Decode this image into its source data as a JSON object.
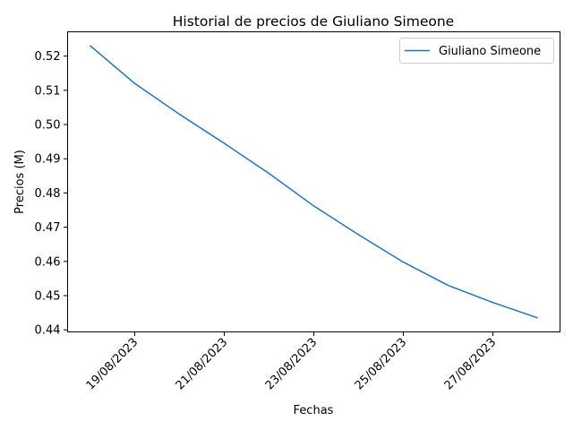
{
  "chart_data": {
    "type": "line",
    "title": "Historial de precios de Giuliano Simeone",
    "xlabel": "Fechas",
    "ylabel": "Precios (M)",
    "x": [
      "18/08/2023",
      "19/08/2023",
      "20/08/2023",
      "21/08/2023",
      "22/08/2023",
      "23/08/2023",
      "24/08/2023",
      "25/08/2023",
      "26/08/2023",
      "27/08/2023",
      "28/08/2023"
    ],
    "x_ticks": [
      "19/08/2023",
      "21/08/2023",
      "23/08/2023",
      "25/08/2023",
      "27/08/2023"
    ],
    "y_ticks": [
      "0.44",
      "0.45",
      "0.46",
      "0.47",
      "0.48",
      "0.49",
      "0.50",
      "0.51",
      "0.52"
    ],
    "ylim": [
      0.4394,
      0.5271
    ],
    "series": [
      {
        "name": "Giuliano Simeone",
        "values": [
          0.5231,
          0.512,
          0.503,
          0.4945,
          0.4857,
          0.4762,
          0.4678,
          0.4598,
          0.453,
          0.448,
          0.4435
        ],
        "color": "#1f77b4"
      }
    ],
    "legend_position": "top-right",
    "grid": false
  }
}
